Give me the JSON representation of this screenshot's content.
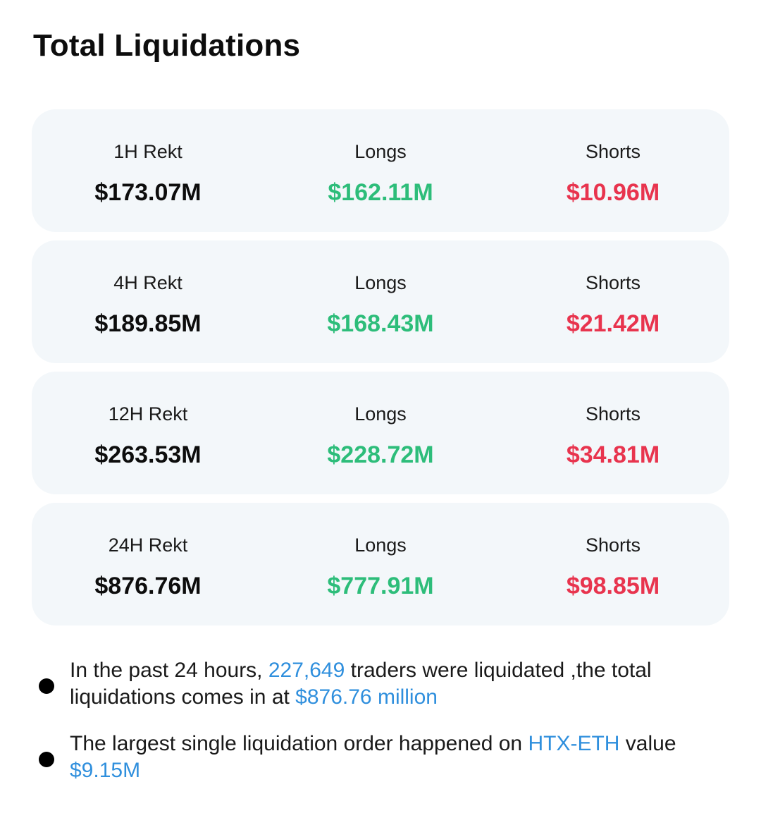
{
  "title": "Total Liquidations",
  "cards": [
    {
      "rekt_label": "1H Rekt",
      "total": "$173.07M",
      "longs_label": "Longs",
      "longs": "$162.11M",
      "shorts_label": "Shorts",
      "shorts": "$10.96M"
    },
    {
      "rekt_label": "4H Rekt",
      "total": "$189.85M",
      "longs_label": "Longs",
      "longs": "$168.43M",
      "shorts_label": "Shorts",
      "shorts": "$21.42M"
    },
    {
      "rekt_label": "12H Rekt",
      "total": "$263.53M",
      "longs_label": "Longs",
      "longs": "$228.72M",
      "shorts_label": "Shorts",
      "shorts": "$34.81M"
    },
    {
      "rekt_label": "24H Rekt",
      "total": "$876.76M",
      "longs_label": "Longs",
      "longs": "$777.91M",
      "shorts_label": "Shorts",
      "shorts": "$98.85M"
    }
  ],
  "bullets": [
    {
      "part1": "In the past 24 hours, ",
      "highlight1": "227,649",
      "part2": " traders were liquidated ,the total liquidations comes in at ",
      "highlight2": "$876.76 million"
    },
    {
      "part1": "The largest single liquidation order happened on ",
      "highlight1": "HTX-ETH",
      "part2": " value ",
      "highlight2": "$9.15M"
    }
  ],
  "colors": {
    "longs": "#2dbd7a",
    "shorts": "#e8344e",
    "highlight": "#2f8fdd",
    "card_bg": "#f3f7fa"
  }
}
